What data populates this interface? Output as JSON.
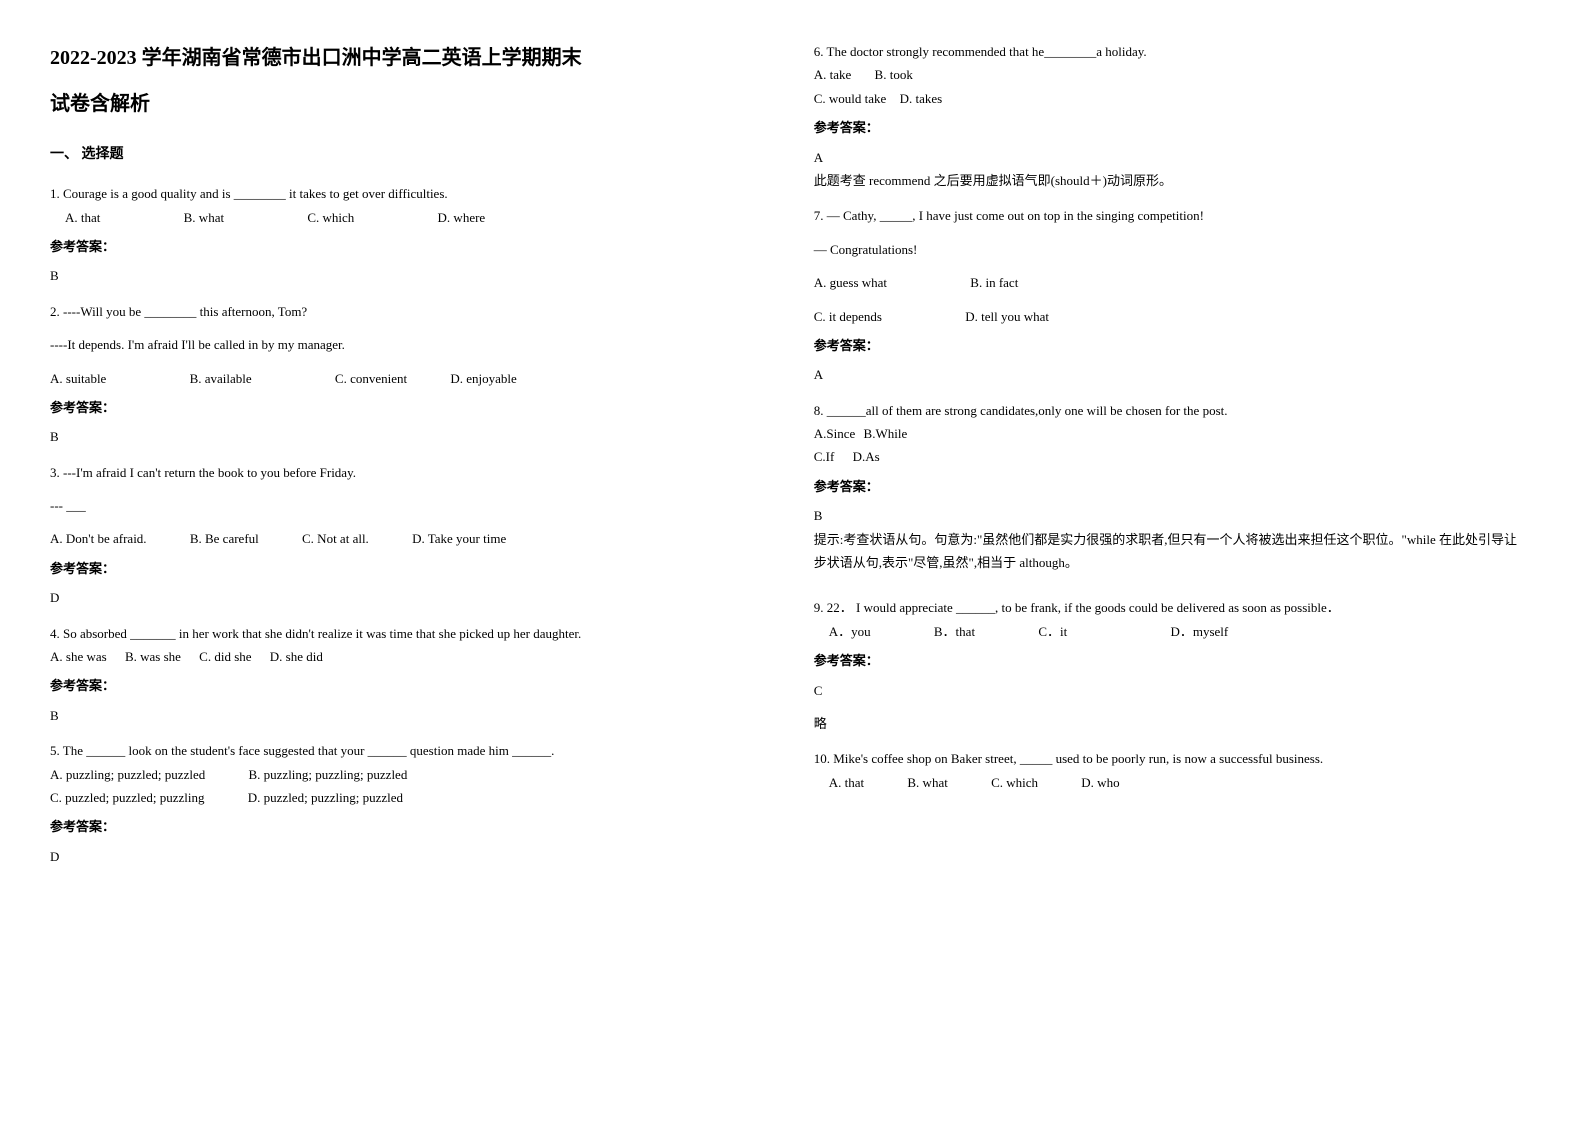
{
  "header": {
    "title": "2022-2023 学年湖南省常德市出口洲中学高二英语上学期期末",
    "subtitle": "试卷含解析"
  },
  "section1": {
    "heading": "一、 选择题"
  },
  "q1": {
    "stem": "1. Courage is a good quality and is ________ it takes to get over difficulties.",
    "optA": "A. that",
    "optB": "B. what",
    "optC": "C. which",
    "optD": "D. where",
    "answerLabel": "参考答案：",
    "answer": "B"
  },
  "q2": {
    "line1": "2. ----Will you be ________ this afternoon, Tom?",
    "line2": "----It depends. I'm afraid I'll be called in by my manager.",
    "optA": "A. suitable",
    "optB": "B. available",
    "optC": "C. convenient",
    "optD": "D. enjoyable",
    "answerLabel": "参考答案：",
    "answer": "B"
  },
  "q3": {
    "line1": "3. ---I'm afraid I can't return the book to you before Friday.",
    "line2": "--- ___",
    "optA": "A. Don't be afraid.",
    "optB": "B. Be careful",
    "optC": "C. Not at all.",
    "optD": "D. Take your time",
    "answerLabel": "参考答案：",
    "answer": "D"
  },
  "q4": {
    "stem": "4. So absorbed _______ in her work that she didn't realize it was time that she picked up her daughter.",
    "optA": "A. she was",
    "optB": "B. was she",
    "optC": "C. did she",
    "optD": "D. she did",
    "answerLabel": "参考答案：",
    "answer": "B"
  },
  "q5": {
    "stem": "5. The ______ look on the student's face suggested that your ______ question made him ______.",
    "optA": "A. puzzling; puzzled; puzzled",
    "optB": "B. puzzling; puzzling; puzzled",
    "optC": "C. puzzled; puzzled; puzzling",
    "optD": "D. puzzled; puzzling; puzzled",
    "answerLabel": "参考答案：",
    "answer": "D"
  },
  "q6": {
    "stem": "6. The doctor strongly recommended that he________a holiday.",
    "optA": "A. take",
    "optB": "B. took",
    "optC": "C. would take",
    "optD": "D. takes",
    "answerLabel": "参考答案：",
    "answer": "A",
    "explain": "此题考查 recommend 之后要用虚拟语气即(should＋)动词原形。"
  },
  "q7": {
    "line1": "7. — Cathy, _____, I have just come out on top in the singing competition!",
    "line2": "— Congratulations!",
    "optA": "A. guess what",
    "optB": "B. in fact",
    "optC": "C. it depends",
    "optD": "D. tell you what",
    "answerLabel": "参考答案：",
    "answer": "A"
  },
  "q8": {
    "stem": "8. ______all of them are strong candidates,only one will be chosen for the post.",
    "optA": "A.Since",
    "optB": "B.While",
    "optC": "C.If",
    "optD": "D.As",
    "answerLabel": "参考答案：",
    "answer": "B",
    "explain": "提示:考查状语从句。句意为:\"虽然他们都是实力很强的求职者,但只有一个人将被选出来担任这个职位。\"while 在此处引导让步状语从句,表示\"尽管,虽然\",相当于 although。"
  },
  "q9": {
    "stem": "9. 22．            I would appreciate ______, to be frank, if the goods could be delivered as soon as possible．",
    "optA": "A．you",
    "optB": "B．that",
    "optC": "C．it",
    "optD": "D．myself",
    "answerLabel": "参考答案：",
    "answer": "C",
    "explain": "略"
  },
  "q10": {
    "stem": "10. Mike's coffee shop on Baker street, _____ used to be poorly run, is now a successful business.",
    "optA": "A. that",
    "optB": "B. what",
    "optC": "C. which",
    "optD": "D. who"
  }
}
